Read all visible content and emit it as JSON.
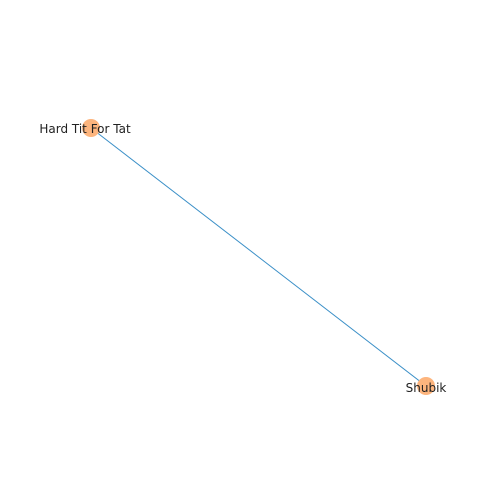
{
  "graph": {
    "nodes": [
      {
        "id": "n1",
        "label": "Hard Tit For Tat"
      },
      {
        "id": "n2",
        "label": "Shubik"
      }
    ],
    "edges": [
      {
        "source": "n1",
        "target": "n2"
      }
    ]
  },
  "colors": {
    "node_fill": "#fdb57e",
    "edge_stroke": "#3a8fc7",
    "label_text": "#222222"
  }
}
